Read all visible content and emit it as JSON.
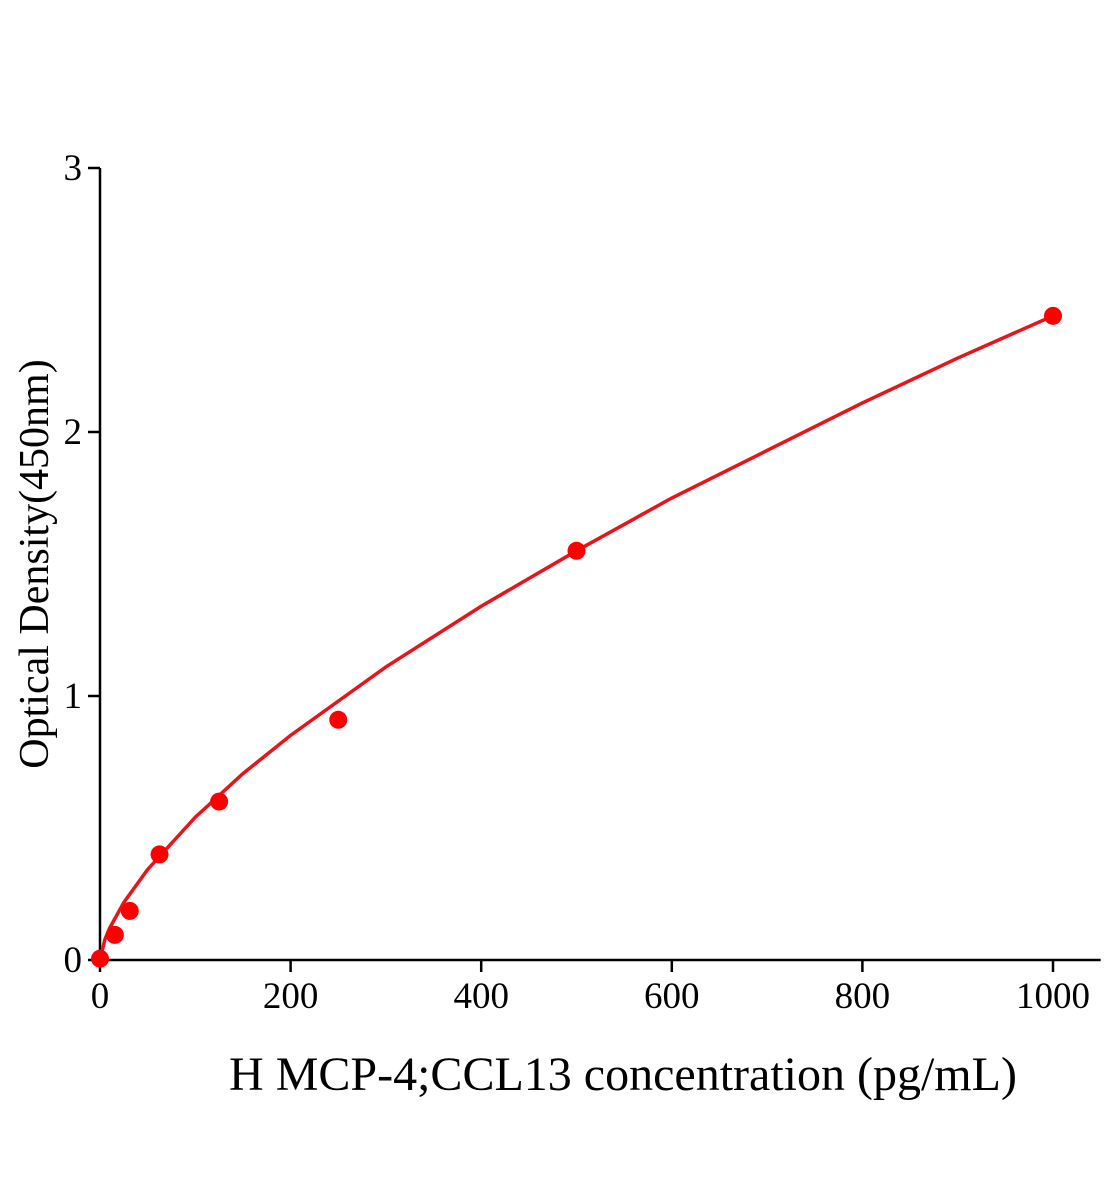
{
  "chart_data": {
    "type": "scatter",
    "xlabel": "H MCP-4;CCL13 concentration (pg/mL)",
    "ylabel": "Optical Density(450nm)",
    "xlim": [
      0,
      1050
    ],
    "ylim": [
      0,
      3
    ],
    "xticks": [
      0,
      200,
      400,
      600,
      800,
      1000
    ],
    "yticks": [
      0,
      1,
      2,
      3
    ],
    "series": [
      {
        "color": "#ff0000",
        "x": [
          0,
          15.6,
          31.25,
          62.5,
          125,
          250,
          500,
          1000
        ],
        "values": [
          0.005,
          0.095,
          0.186,
          0.4,
          0.6,
          0.91,
          1.55,
          2.44
        ]
      }
    ],
    "curve": {
      "color": "#e8141b",
      "x": [
        0,
        5,
        10,
        25,
        50,
        100,
        150,
        200,
        300,
        400,
        500,
        600,
        700,
        800,
        900,
        1000
      ],
      "values": [
        0,
        0.076,
        0.12,
        0.218,
        0.343,
        0.541,
        0.706,
        0.851,
        1.11,
        1.34,
        1.55,
        1.75,
        1.93,
        2.11,
        2.28,
        2.44
      ]
    }
  }
}
